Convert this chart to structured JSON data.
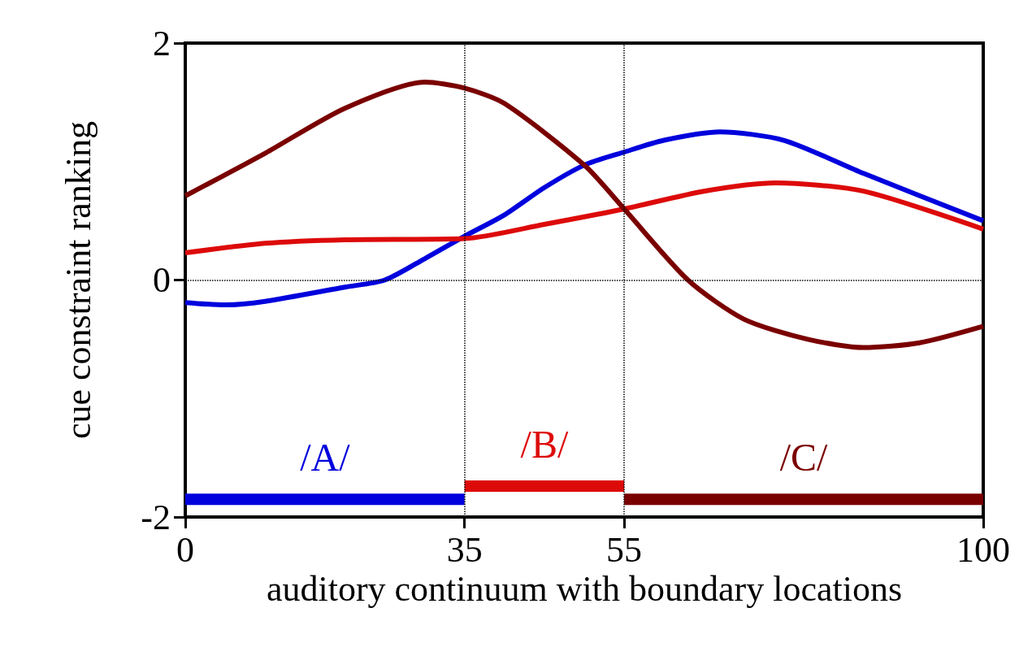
{
  "chart_data": {
    "type": "line",
    "xlabel": "auditory continuum with boundary locations",
    "ylabel": "cue constraint ranking",
    "xlim": [
      0,
      100
    ],
    "xticks": [
      0,
      35,
      55,
      100
    ],
    "ylim": [
      -2,
      2
    ],
    "yticks": [
      -2,
      0,
      2
    ],
    "grid": false,
    "marker": "none",
    "line_style": "solid",
    "series": [
      {
        "color": "#0000dd",
        "x": [
          0,
          5,
          10,
          20,
          25,
          30,
          35,
          40,
          45,
          50,
          55,
          60,
          67,
          75,
          85,
          100
        ],
        "values": [
          -0.19,
          -0.21,
          -0.18,
          -0.06,
          0,
          0.18,
          0.37,
          0.55,
          0.78,
          0.97,
          1.08,
          1.18,
          1.25,
          1.18,
          0.9,
          0.5
        ]
      },
      {
        "color": "#dd0a0a",
        "x": [
          0,
          10,
          20,
          35,
          45,
          55,
          65,
          74,
          85,
          100
        ],
        "values": [
          0.23,
          0.31,
          0.34,
          0.35,
          0.47,
          0.6,
          0.75,
          0.82,
          0.75,
          0.43
        ]
      },
      {
        "color": "#7a0000",
        "x": [
          0,
          10,
          20,
          30,
          35,
          40,
          50,
          55,
          63,
          70,
          78,
          85,
          92,
          100
        ],
        "values": [
          0.71,
          1.07,
          1.45,
          1.67,
          1.62,
          1.49,
          0.97,
          0.6,
          0,
          -0.33,
          -0.5,
          -0.57,
          -0.53,
          -0.39
        ]
      },
      {
        "color": "#0000dd",
        "x": [
          0,
          35
        ],
        "values": [
          -1.85,
          -1.85
        ]
      },
      {
        "color": "#dd0a0a",
        "x": [
          35,
          55
        ],
        "values": [
          -1.74,
          -1.74
        ]
      },
      {
        "color": "#7a0000",
        "x": [
          55,
          100
        ],
        "values": [
          -1.85,
          -1.85
        ]
      }
    ],
    "ref_lines": [
      {
        "axis": "x",
        "value": 35,
        "line_style": "dotted"
      },
      {
        "axis": "x",
        "value": 55,
        "line_style": "dotted"
      },
      {
        "axis": "y",
        "value": 0,
        "line_style": "dotted"
      }
    ],
    "annotations": [
      "/A/",
      "/B/",
      "/C/"
    ]
  }
}
